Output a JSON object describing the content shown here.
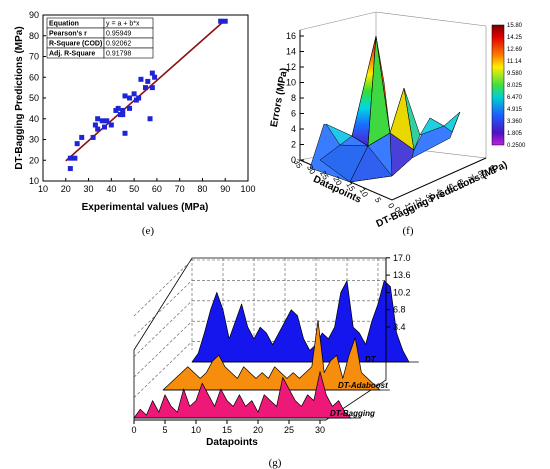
{
  "captions": {
    "e": "(e)",
    "f": "(f)",
    "g": "(g)"
  },
  "chart_data": [
    {
      "type": "scatter",
      "xlabel": "Experimental values (MPa)",
      "ylabel": "DT-Bagging Predictions (MPa)",
      "xlim": [
        10,
        100
      ],
      "ylim": [
        10,
        90
      ],
      "xticks": [
        "10",
        "20",
        "30",
        "40",
        "50",
        "60",
        "70",
        "80",
        "90",
        "100"
      ],
      "yticks": [
        "10",
        "20",
        "30",
        "40",
        "50",
        "60",
        "70",
        "80",
        "90"
      ],
      "fit": {
        "a": 0.3,
        "b": 0.97
      },
      "points": [
        [
          22,
          16
        ],
        [
          22,
          21
        ],
        [
          24,
          21
        ],
        [
          25,
          28
        ],
        [
          27,
          31
        ],
        [
          32,
          31
        ],
        [
          33,
          37
        ],
        [
          34,
          35
        ],
        [
          34,
          40
        ],
        [
          36,
          39
        ],
        [
          37,
          36
        ],
        [
          38,
          39
        ],
        [
          40,
          37
        ],
        [
          42,
          44
        ],
        [
          43,
          45
        ],
        [
          44,
          42
        ],
        [
          45,
          42
        ],
        [
          45,
          44
        ],
        [
          46,
          33
        ],
        [
          46,
          51
        ],
        [
          48,
          45
        ],
        [
          48,
          50
        ],
        [
          50,
          52
        ],
        [
          51,
          49
        ],
        [
          52,
          50
        ],
        [
          53,
          59
        ],
        [
          55,
          55
        ],
        [
          56,
          58
        ],
        [
          57,
          40
        ],
        [
          58,
          55
        ],
        [
          58,
          62
        ],
        [
          59,
          60
        ],
        [
          88,
          87
        ],
        [
          90,
          87
        ]
      ],
      "stats_table": {
        "rows": [
          [
            "Equation",
            "y = a + b*x"
          ],
          [
            "Pearson's r",
            "0.95949"
          ],
          [
            "R-Square (COD)",
            "0.92062"
          ],
          [
            "Adj. R-Square",
            "0.91798"
          ]
        ]
      },
      "colors": {
        "points": "#1f24d6",
        "fit": "#8b1010"
      }
    },
    {
      "type": "surface",
      "zlabel": "Errors (MPa)",
      "xlabel": "Datapoints",
      "ylabel": "DT-Bagging Predictions (MPa)",
      "zticks": [
        "0",
        "2",
        "4",
        "6",
        "8",
        "10",
        "12",
        "14",
        "16"
      ],
      "xticks": [
        "35",
        "30",
        "25",
        "20",
        "15",
        "10",
        "5",
        "0"
      ],
      "yticks": [
        "0",
        "10",
        "20",
        "30",
        "40",
        "50",
        "60",
        "70",
        "80",
        "90"
      ],
      "colorbar": [
        "15.80",
        "14.25",
        "12.69",
        "11.14",
        "9.580",
        "8.025",
        "6.470",
        "4.915",
        "3.360",
        "1.805",
        "0.2500"
      ],
      "peaks": [
        {
          "datapoint": 12,
          "prediction": 45,
          "error": 15.8
        },
        {
          "datapoint": 20,
          "prediction": 50,
          "error": 9.5
        },
        {
          "datapoint": 27,
          "prediction": 55,
          "error": 5.8
        },
        {
          "datapoint": 31,
          "prediction": 60,
          "error": 4.0
        },
        {
          "datapoint": 33,
          "prediction": 40,
          "error": 3.6
        }
      ]
    },
    {
      "type": "area",
      "xlabel": "Datapoints",
      "xticks": [
        "0",
        "5",
        "10",
        "15",
        "20",
        "25",
        "30"
      ],
      "zticks": [
        "3.4",
        "6.8",
        "10.2",
        "13.6",
        "17.0"
      ],
      "series": [
        {
          "name": "DT",
          "color": "#1515ee",
          "values": [
            0,
            1.5,
            5,
            9,
            12,
            9,
            4,
            7,
            10,
            6,
            4,
            6,
            5,
            3,
            5,
            7,
            9,
            8,
            4,
            2,
            3,
            5,
            4,
            6,
            12,
            14,
            6,
            5,
            3,
            7,
            10,
            14,
            13,
            5,
            2,
            0
          ]
        },
        {
          "name": "DT-Adaboost",
          "color": "#f78d0c",
          "values": [
            0,
            1,
            2,
            3,
            4,
            3,
            2,
            3,
            5,
            6,
            4,
            3,
            2,
            4,
            3,
            2,
            3,
            2,
            4,
            3,
            2,
            3,
            2,
            3,
            4,
            12,
            3,
            5,
            6,
            2,
            6,
            9,
            3,
            2,
            1,
            0
          ]
        },
        {
          "name": "DT-Bagging",
          "color": "#ee1878",
          "values": [
            0,
            1.5,
            0.5,
            3,
            1,
            4,
            2,
            1,
            5,
            2,
            3,
            6,
            4,
            2,
            5,
            3,
            2,
            4,
            2,
            3,
            1,
            4,
            3,
            2,
            7,
            5,
            3,
            2,
            4,
            3,
            8,
            4,
            2,
            3,
            1,
            0
          ]
        }
      ]
    }
  ]
}
